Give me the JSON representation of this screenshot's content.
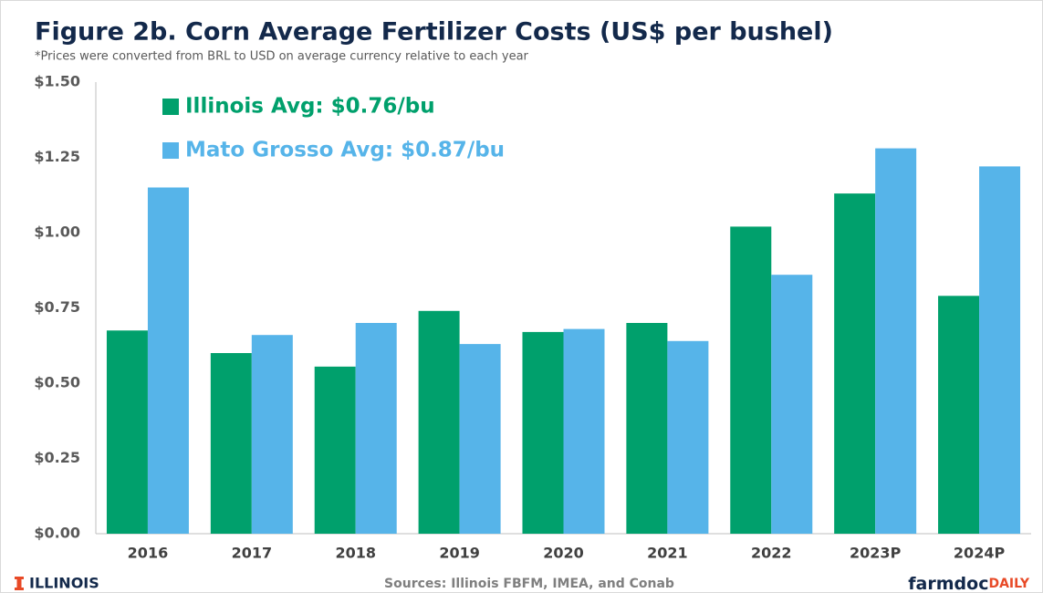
{
  "chart_data": {
    "type": "bar",
    "title": "Figure 2b. Corn Average Fertilizer Costs (US$ per bushel)",
    "subtitle": "*Prices were converted from BRL to USD on average currency relative to each year",
    "categories": [
      "2016",
      "2017",
      "2018",
      "2019",
      "2020",
      "2021",
      "2022",
      "2023P",
      "2024P"
    ],
    "series": [
      {
        "name": "Illinois Avg: $0.76/bu",
        "color": "#00a06c",
        "values": [
          0.675,
          0.6,
          0.555,
          0.74,
          0.67,
          0.7,
          1.02,
          1.13,
          0.79
        ]
      },
      {
        "name": "Mato Grosso Avg: $0.87/bu",
        "color": "#56b4e9",
        "values": [
          1.15,
          0.66,
          0.7,
          0.63,
          0.68,
          0.64,
          0.86,
          1.28,
          1.22
        ]
      }
    ],
    "ylim": [
      0,
      1.5
    ],
    "yticks": [
      {
        "value": 0,
        "label": "$0.00"
      },
      {
        "value": 0.25,
        "label": "$0.25"
      },
      {
        "value": 0.5,
        "label": "$0.50"
      },
      {
        "value": 0.75,
        "label": "$0.75"
      },
      {
        "value": 1,
        "label": "$1.00"
      },
      {
        "value": 1.25,
        "label": "$1.25"
      },
      {
        "value": 1.5,
        "label": "$1.50"
      }
    ],
    "grid": false,
    "source": "Sources: Illinois FBFM, IMEA, and Conab",
    "logo_left": "ILLINOIS",
    "logo_right": "farmdoc",
    "logo_right_suffix": "DAILY"
  }
}
